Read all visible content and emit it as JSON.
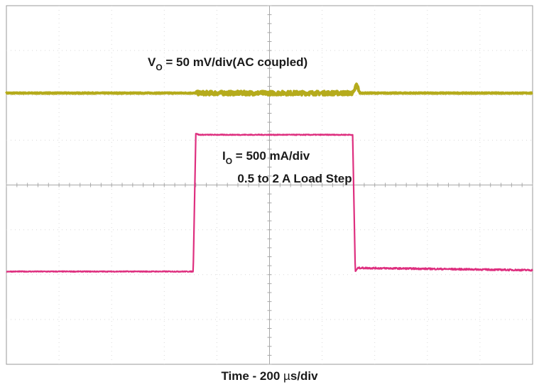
{
  "chart_data": {
    "type": "line",
    "title": "",
    "grid": true,
    "divisions": {
      "x": 10,
      "y": 8
    },
    "xlabel": {
      "prefix": "Time - 200 ",
      "unit_mu": "µ",
      "unit_rest": "s/div"
    },
    "annotations": {
      "vo": {
        "main": "V",
        "sub": "O",
        "rest": " = 50 mV/div(AC coupled)"
      },
      "io": {
        "main": "I",
        "sub": "O",
        "rest": " = 500 mA/div"
      },
      "load_step": "0.5 to 2 A Load Step"
    },
    "series": [
      {
        "id": "vo",
        "color": "#b5ab1c",
        "baseline_div": 6.05,
        "x_div": [
          0,
          3.55,
          3.62,
          6.6,
          6.65,
          6.72,
          10
        ],
        "y_div": [
          6.05,
          6.05,
          6.05,
          6.05,
          6.25,
          6.05,
          6.05
        ],
        "noise_window_div": [
          3.6,
          6.7
        ]
      },
      {
        "id": "io",
        "color": "#de2f7f",
        "x_div": [
          0,
          3.55,
          3.6,
          3.66,
          6.58,
          6.63,
          6.68,
          10
        ],
        "y_div": [
          2.07,
          2.07,
          5.15,
          5.12,
          5.12,
          2.07,
          2.15,
          2.1
        ],
        "noise_window_div": [
          6.7,
          10
        ]
      }
    ]
  }
}
